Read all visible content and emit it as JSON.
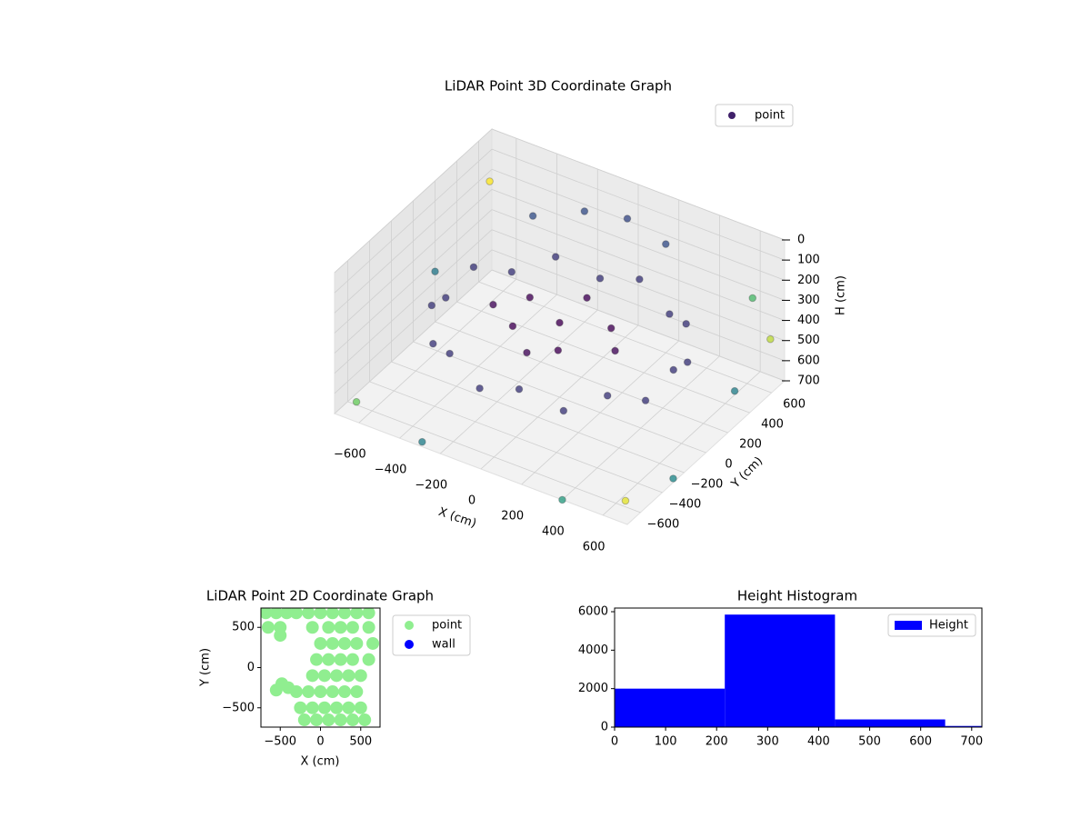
{
  "chart_data": [
    {
      "type": "scatter3d",
      "title": "LiDAR Point 3D Coordinate Graph",
      "xlabel": "X (cm)",
      "ylabel": "Y (cm)",
      "zlabel": "H (cm)",
      "colormap": "viridis",
      "legend": "upper right",
      "xlim": [
        -720,
        720
      ],
      "ylim": [
        -720,
        720
      ],
      "zlim": [
        700,
        0
      ],
      "xticks": [
        {
          "value": -600,
          "label": "−600"
        },
        {
          "value": -400,
          "label": "−400"
        },
        {
          "value": -200,
          "label": "−200"
        },
        0,
        200,
        400,
        600
      ],
      "yticks": [
        {
          "value": -600,
          "label": "−600"
        },
        {
          "value": -400,
          "label": "−400"
        },
        {
          "value": -200,
          "label": "−200"
        },
        0,
        200,
        400,
        600
      ],
      "zticks": [
        0,
        100,
        200,
        300,
        400,
        500,
        600,
        700
      ],
      "series": [
        {
          "name": "point",
          "x": [
            560,
            526,
            429,
            280,
            97,
            -97,
            -280,
            -429,
            -526,
            -560,
            -526,
            -429,
            -280,
            -97,
            97,
            280,
            429,
            526,
            -200,
            0,
            200,
            -400,
            0,
            200,
            -200,
            100,
            -150,
            300,
            -300,
            0,
            0,
            -720,
            -650,
            700,
            650,
            700,
            720,
            -300,
            400,
            -720,
            600
          ],
          "y": [
            0,
            192,
            360,
            485,
            551,
            551,
            485,
            360,
            192,
            0,
            -192,
            -360,
            -485,
            -551,
            -551,
            -485,
            -360,
            -192,
            600,
            620,
            600,
            500,
            0,
            100,
            100,
            -200,
            -150,
            -50,
            -50,
            250,
            -300,
            700,
            -650,
            -700,
            720,
            300,
            -300,
            -700,
            -720,
            200,
            650
          ],
          "z": [
            350,
            420,
            350,
            420,
            350,
            420,
            350,
            420,
            350,
            420,
            350,
            420,
            350,
            420,
            350,
            420,
            350,
            420,
            150,
            120,
            160,
            200,
            330,
            330,
            330,
            330,
            330,
            330,
            330,
            330,
            330,
            250,
            650,
            600,
            520,
            550,
            680,
            690,
            700,
            450,
            300
          ]
        }
      ]
    },
    {
      "type": "scatter",
      "title": "LiDAR Point 2D Coordinate Graph",
      "xlabel": "X (cm)",
      "ylabel": "Y (cm)",
      "legend": "outside right",
      "xlim": [
        -740,
        740
      ],
      "ylim": [
        -740,
        740
      ],
      "xticks": [
        {
          "value": -500,
          "label": "−500"
        },
        0,
        500
      ],
      "yticks": [
        {
          "value": -500,
          "label": "−500"
        },
        0,
        500
      ],
      "series": [
        {
          "name": "point",
          "color": "#90ee90",
          "x": [
            -680,
            -550,
            -420,
            -300,
            -150,
            0,
            150,
            300,
            450,
            600,
            -650,
            -500,
            -100,
            100,
            250,
            400,
            600,
            0,
            150,
            300,
            450,
            650,
            -50,
            100,
            250,
            400,
            600,
            -100,
            50,
            200,
            350,
            500,
            -300,
            -150,
            0,
            150,
            300,
            450,
            -250,
            -100,
            50,
            200,
            350,
            500,
            -200,
            -50,
            100,
            250,
            400,
            550,
            -480,
            -550,
            -400,
            -500
          ],
          "y": [
            680,
            680,
            680,
            680,
            680,
            680,
            680,
            680,
            680,
            680,
            500,
            500,
            500,
            500,
            500,
            500,
            500,
            300,
            300,
            300,
            300,
            300,
            100,
            100,
            100,
            100,
            100,
            -100,
            -100,
            -100,
            -100,
            -100,
            -300,
            -300,
            -300,
            -300,
            -300,
            -300,
            -500,
            -500,
            -500,
            -500,
            -500,
            -500,
            -650,
            -650,
            -650,
            -650,
            -650,
            -650,
            -200,
            -280,
            -250,
            400
          ]
        },
        {
          "name": "wall",
          "color": "#0000ff",
          "x": [],
          "y": []
        }
      ]
    },
    {
      "type": "histogram",
      "title": "Height Histogram",
      "name": "Height",
      "color": "#0000ff",
      "legend": "upper right",
      "bins": [
        0,
        216,
        432,
        648,
        720
      ],
      "counts": [
        2000,
        5850,
        400,
        60
      ],
      "xlim": [
        0,
        720
      ],
      "ylim": [
        0,
        6190
      ],
      "xticks": [
        0,
        100,
        200,
        300,
        400,
        500,
        600,
        700
      ],
      "yticks": [
        0,
        2000,
        4000,
        6000
      ]
    }
  ]
}
